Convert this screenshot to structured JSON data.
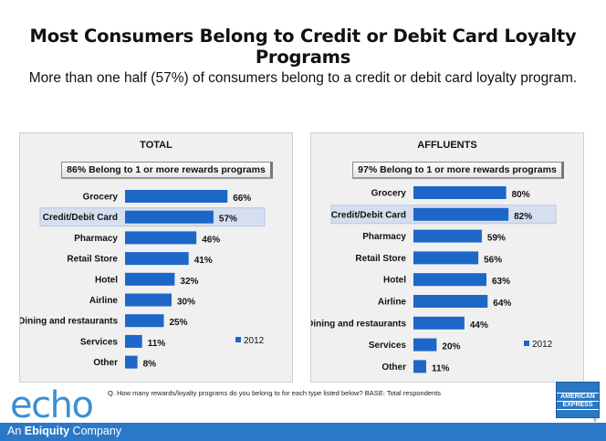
{
  "title": "Most Consumers Belong to Credit or Debit Card Loyalty Programs",
  "subtitle": "More than one half (57%) of consumers belong to a credit or debit card loyalty program.",
  "chart_data": [
    {
      "type": "bar",
      "orientation": "horizontal",
      "title": "TOTAL",
      "annotation": "86% Belong to 1 or more rewards programs",
      "highlight": "Credit/Debit Card",
      "categories": [
        "Grocery",
        "Credit/Debit Card",
        "Pharmacy",
        "Retail Store",
        "Hotel",
        "Airline",
        "Dining and restaurants",
        "Services",
        "Other"
      ],
      "series": [
        {
          "name": "2012",
          "values": [
            66,
            57,
            46,
            41,
            32,
            30,
            25,
            11,
            8
          ]
        }
      ],
      "value_labels": [
        "66%",
        "57%",
        "46%",
        "41%",
        "32%",
        "30%",
        "25%",
        "11%",
        "8%"
      ],
      "legend_position": "right",
      "color": "#1d67c9"
    },
    {
      "type": "bar",
      "orientation": "horizontal",
      "title": "AFFLUENTS",
      "annotation": "97% Belong to 1 or more rewards programs",
      "highlight": "Credit/Debit Card",
      "categories": [
        "Grocery",
        "Credit/Debit Card",
        "Pharmacy",
        "Retail Store",
        "Hotel",
        "Airline",
        "Dining and restaurants",
        "Services",
        "Other"
      ],
      "series": [
        {
          "name": "2012",
          "values": [
            80,
            82,
            59,
            56,
            63,
            64,
            44,
            20,
            11
          ]
        }
      ],
      "value_labels": [
        "80%",
        "82%",
        "59%",
        "56%",
        "63%",
        "64%",
        "44%",
        "20%",
        "11%"
      ],
      "legend_position": "right",
      "color": "#1d67c9"
    }
  ],
  "question": "Q.  How many rewards/loyalty programs do you belong to for each type listed below? BASE:  Total respondents",
  "logo": {
    "text": "echo"
  },
  "footer": {
    "prefix": "An ",
    "brand": "Ebiquity",
    "suffix": " Company"
  },
  "amex": {
    "line1": "AMERICAN",
    "line2": "EXPRESS",
    "reg": "®"
  },
  "colors": {
    "bar": "#1d67c9",
    "footer": "#2b78c8",
    "logo": "#3b8fd2",
    "highlight": "#d6dff0"
  }
}
